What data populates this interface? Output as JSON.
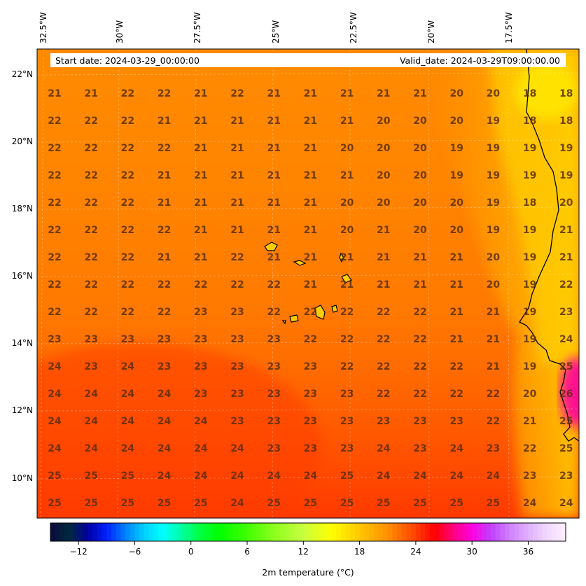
{
  "header": {
    "start_date": "Start date: 2024-03-29_00:00:00",
    "valid_date": "Valid_date: 2024-03-29T09:00:00.00"
  },
  "lon_labels": [
    "32.5°W",
    "30°W",
    "27.5°W",
    "25°W",
    "22.5°W",
    "20°W",
    "17.5°W"
  ],
  "lat_labels": [
    "22°N",
    "20°N",
    "18°N",
    "16°N",
    "14°N",
    "12°N",
    "10°N"
  ],
  "colorbar": {
    "title": "2m temperature ($^\\circ$C)",
    "title_display": "2m temperature (°C)",
    "ticks": [
      "−12",
      "−6",
      "0",
      "6",
      "12",
      "18",
      "24",
      "30",
      "36"
    ],
    "range": [
      -15,
      40
    ]
  },
  "values": [
    [
      "21",
      "21",
      "22",
      "22",
      "21",
      "22",
      "21",
      "21",
      "21",
      "21",
      "21",
      "20",
      "20",
      "18",
      "18"
    ],
    [
      "22",
      "22",
      "22",
      "21",
      "21",
      "21",
      "21",
      "21",
      "21",
      "20",
      "20",
      "20",
      "19",
      "18",
      "18"
    ],
    [
      "22",
      "22",
      "22",
      "22",
      "21",
      "21",
      "21",
      "21",
      "20",
      "20",
      "20",
      "19",
      "19",
      "19",
      "19"
    ],
    [
      "22",
      "22",
      "22",
      "21",
      "21",
      "21",
      "21",
      "21",
      "21",
      "20",
      "20",
      "19",
      "19",
      "19",
      "19"
    ],
    [
      "22",
      "22",
      "22",
      "21",
      "21",
      "21",
      "21",
      "21",
      "20",
      "20",
      "20",
      "20",
      "19",
      "18",
      "20"
    ],
    [
      "22",
      "22",
      "22",
      "22",
      "21",
      "21",
      "21",
      "21",
      "20",
      "21",
      "20",
      "20",
      "19",
      "19",
      "21"
    ],
    [
      "22",
      "22",
      "22",
      "21",
      "21",
      "22",
      "21",
      "21",
      "21",
      "21",
      "21",
      "21",
      "20",
      "19",
      "21"
    ],
    [
      "22",
      "22",
      "22",
      "22",
      "22",
      "22",
      "22",
      "21",
      "21",
      "21",
      "21",
      "21",
      "20",
      "19",
      "22"
    ],
    [
      "22",
      "22",
      "22",
      "22",
      "23",
      "23",
      "22",
      "22",
      "22",
      "22",
      "22",
      "21",
      "21",
      "19",
      "23"
    ],
    [
      "23",
      "23",
      "23",
      "23",
      "23",
      "23",
      "23",
      "22",
      "22",
      "22",
      "22",
      "21",
      "21",
      "19",
      "24"
    ],
    [
      "24",
      "23",
      "24",
      "23",
      "23",
      "23",
      "23",
      "23",
      "22",
      "22",
      "22",
      "22",
      "21",
      "19",
      "25"
    ],
    [
      "24",
      "24",
      "24",
      "24",
      "23",
      "23",
      "23",
      "23",
      "23",
      "22",
      "22",
      "22",
      "22",
      "20",
      "26"
    ],
    [
      "24",
      "24",
      "24",
      "24",
      "24",
      "23",
      "23",
      "23",
      "23",
      "23",
      "23",
      "23",
      "22",
      "21",
      "25"
    ],
    [
      "24",
      "24",
      "24",
      "24",
      "24",
      "24",
      "23",
      "23",
      "23",
      "24",
      "23",
      "24",
      "23",
      "22",
      "25"
    ],
    [
      "25",
      "25",
      "25",
      "24",
      "24",
      "24",
      "24",
      "24",
      "25",
      "24",
      "24",
      "24",
      "24",
      "23",
      "23"
    ],
    [
      "25",
      "25",
      "25",
      "25",
      "25",
      "24",
      "25",
      "25",
      "25",
      "25",
      "25",
      "25",
      "25",
      "24",
      "24"
    ]
  ]
}
